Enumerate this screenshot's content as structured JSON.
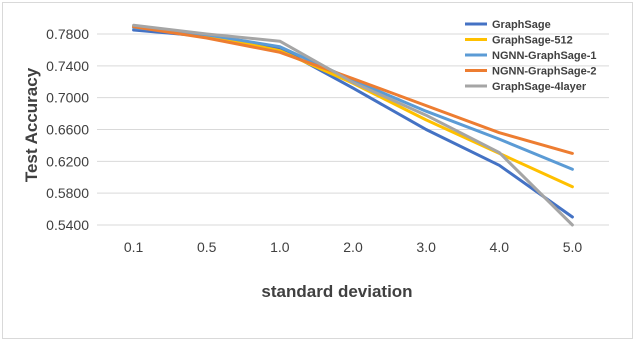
{
  "chart_data": {
    "type": "line",
    "title": "",
    "xlabel": "standard deviation",
    "ylabel": "Test Accuracy",
    "categories": [
      "0.1",
      "0.5",
      "1.0",
      "2.0",
      "3.0",
      "4.0",
      "5.0"
    ],
    "ylim": [
      0.54,
      0.78
    ],
    "yticks": [
      "0.5400",
      "0.5800",
      "0.6200",
      "0.6600",
      "0.7000",
      "0.7400",
      "0.7800"
    ],
    "ytick_values": [
      0.54,
      0.58,
      0.62,
      0.66,
      0.7,
      0.74,
      0.78
    ],
    "grid": "horizontal",
    "legend_position": "top-right",
    "series": [
      {
        "name": "GraphSage",
        "color": "#4472C4",
        "values": [
          0.785,
          0.777,
          0.762,
          0.712,
          0.66,
          0.615,
          0.55
        ]
      },
      {
        "name": "GraphSage-512",
        "color": "#FFC000",
        "values": [
          0.79,
          0.778,
          0.759,
          0.718,
          0.672,
          0.63,
          0.588
        ]
      },
      {
        "name": "NGNN-GraphSage-1",
        "color": "#5B9BD5",
        "values": [
          0.788,
          0.779,
          0.764,
          0.722,
          0.683,
          0.648,
          0.61
        ]
      },
      {
        "name": "NGNN-GraphSage-2",
        "color": "#ED7D31",
        "values": [
          0.789,
          0.775,
          0.757,
          0.724,
          0.69,
          0.656,
          0.63
        ]
      },
      {
        "name": "GraphSage-4layer",
        "color": "#A5A5A5",
        "values": [
          0.791,
          0.78,
          0.771,
          0.719,
          0.678,
          0.631,
          0.54
        ]
      }
    ]
  }
}
